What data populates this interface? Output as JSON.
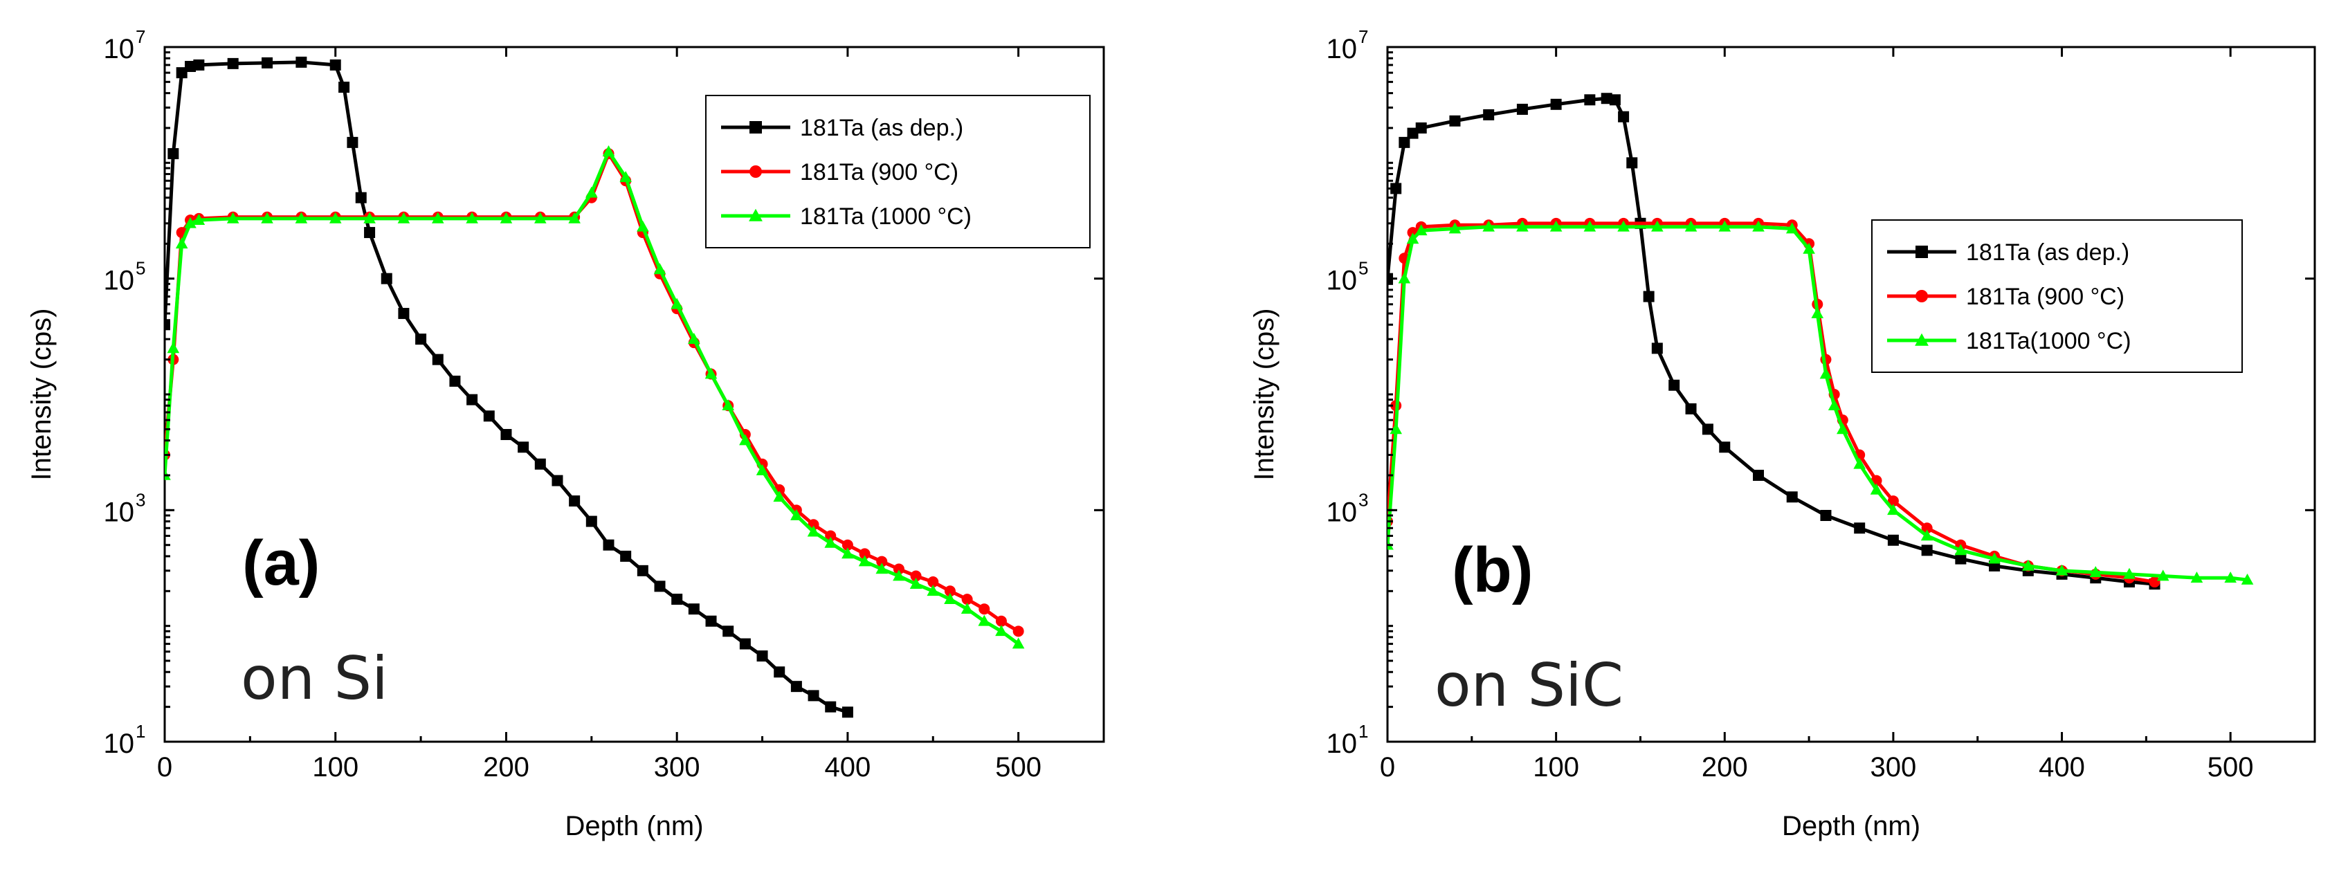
{
  "chart_data": [
    {
      "type": "scatter",
      "panel_label": "(a)",
      "substrate_label": "on Si",
      "xlabel": "Depth (nm)",
      "ylabel": "Intensity (cps)",
      "xlim": [
        0,
        550
      ],
      "ylim": [
        10,
        10000000
      ],
      "yscale": "log",
      "x_ticks": [
        "0",
        "100",
        "200",
        "300",
        "400",
        "500"
      ],
      "x_tick_values": [
        0,
        100,
        200,
        300,
        400,
        500
      ],
      "y_ticks": [
        {
          "base": "10",
          "exp": "1"
        },
        {
          "base": "10",
          "exp": "3"
        },
        {
          "base": "10",
          "exp": "5"
        },
        {
          "base": "10",
          "exp": "7"
        }
      ],
      "y_tick_values": [
        10,
        1000,
        100000,
        10000000
      ],
      "legend_position": "top-right",
      "series": [
        {
          "name": "181Ta (as dep.)",
          "color": "#000000",
          "marker": "square",
          "x": [
            0,
            5,
            10,
            15,
            20,
            40,
            60,
            80,
            100,
            105,
            110,
            115,
            120,
            130,
            140,
            150,
            160,
            170,
            180,
            190,
            200,
            210,
            220,
            230,
            240,
            250,
            260,
            270,
            280,
            290,
            300,
            310,
            320,
            330,
            340,
            350,
            360,
            370,
            380,
            390,
            400
          ],
          "y": [
            40000,
            1200000,
            6000000,
            6800000,
            7000000,
            7200000,
            7300000,
            7400000,
            7000000,
            4500000,
            1500000,
            500000,
            250000,
            100000,
            50000,
            30000,
            20000,
            13000,
            9000,
            6500,
            4500,
            3500,
            2500,
            1800,
            1200,
            800,
            500,
            400,
            300,
            220,
            170,
            140,
            110,
            90,
            70,
            55,
            40,
            30,
            25,
            20,
            18
          ]
        },
        {
          "name": "181Ta (900 °C)",
          "color": "#ff0000",
          "marker": "circle",
          "x": [
            0,
            5,
            10,
            15,
            20,
            40,
            60,
            80,
            100,
            120,
            140,
            160,
            180,
            200,
            220,
            240,
            250,
            260,
            270,
            280,
            290,
            300,
            310,
            320,
            330,
            340,
            350,
            360,
            370,
            380,
            390,
            400,
            410,
            420,
            430,
            440,
            450,
            460,
            470,
            480,
            490,
            500
          ],
          "y": [
            3000,
            20000,
            250000,
            320000,
            330000,
            340000,
            340000,
            340000,
            340000,
            340000,
            340000,
            340000,
            340000,
            340000,
            340000,
            340000,
            500000,
            1200000,
            700000,
            250000,
            110000,
            55000,
            28000,
            15000,
            8000,
            4500,
            2500,
            1500,
            1000,
            750,
            600,
            500,
            420,
            360,
            310,
            270,
            240,
            200,
            170,
            140,
            110,
            90
          ]
        },
        {
          "name": "181Ta (1000 °C)",
          "color": "#00ff00",
          "marker": "triangle",
          "x": [
            0,
            5,
            10,
            15,
            20,
            40,
            60,
            80,
            100,
            120,
            140,
            160,
            180,
            200,
            220,
            240,
            250,
            260,
            270,
            280,
            290,
            300,
            310,
            320,
            330,
            340,
            350,
            360,
            370,
            380,
            390,
            400,
            410,
            420,
            430,
            440,
            450,
            460,
            470,
            480,
            490,
            500
          ],
          "y": [
            2000,
            25000,
            200000,
            300000,
            320000,
            330000,
            330000,
            330000,
            330000,
            330000,
            330000,
            330000,
            330000,
            330000,
            330000,
            330000,
            550000,
            1250000,
            750000,
            280000,
            120000,
            60000,
            30000,
            15000,
            8000,
            4000,
            2200,
            1300,
            900,
            650,
            520,
            420,
            360,
            310,
            270,
            230,
            200,
            170,
            140,
            110,
            90,
            70
          ]
        }
      ]
    },
    {
      "type": "scatter",
      "panel_label": "(b)",
      "substrate_label": "on SiC",
      "xlabel": "Depth (nm)",
      "ylabel": "Intensity (cps)",
      "xlim": [
        0,
        550
      ],
      "ylim": [
        10,
        10000000
      ],
      "yscale": "log",
      "x_ticks": [
        "0",
        "100",
        "200",
        "300",
        "400",
        "500"
      ],
      "x_tick_values": [
        0,
        100,
        200,
        300,
        400,
        500
      ],
      "y_ticks": [
        {
          "base": "10",
          "exp": "1"
        },
        {
          "base": "10",
          "exp": "3"
        },
        {
          "base": "10",
          "exp": "5"
        },
        {
          "base": "10",
          "exp": "7"
        }
      ],
      "y_tick_values": [
        10,
        1000,
        100000,
        10000000
      ],
      "legend_position": "right",
      "series": [
        {
          "name": "181Ta  (as dep.)",
          "color": "#000000",
          "marker": "square",
          "x": [
            0,
            5,
            10,
            15,
            20,
            40,
            60,
            80,
            100,
            120,
            130,
            135,
            140,
            145,
            150,
            155,
            160,
            170,
            180,
            190,
            200,
            220,
            240,
            260,
            280,
            300,
            320,
            340,
            360,
            380,
            400,
            420,
            440,
            455
          ],
          "y": [
            100000,
            600000,
            1500000,
            1800000,
            2000000,
            2300000,
            2600000,
            2900000,
            3200000,
            3500000,
            3600000,
            3500000,
            2500000,
            1000000,
            300000,
            70000,
            25000,
            12000,
            7500,
            5000,
            3500,
            2000,
            1300,
            900,
            700,
            550,
            450,
            380,
            330,
            300,
            280,
            260,
            240,
            230
          ]
        },
        {
          "name": "181Ta (900 °C)",
          "color": "#ff0000",
          "marker": "circle",
          "x": [
            0,
            5,
            10,
            15,
            20,
            40,
            60,
            80,
            100,
            120,
            140,
            160,
            180,
            200,
            220,
            240,
            250,
            255,
            260,
            265,
            270,
            280,
            290,
            300,
            320,
            340,
            360,
            380,
            400,
            420,
            440,
            455
          ],
          "y": [
            800,
            8000,
            150000,
            250000,
            280000,
            290000,
            290000,
            300000,
            300000,
            300000,
            300000,
            300000,
            300000,
            300000,
            300000,
            290000,
            200000,
            60000,
            20000,
            10000,
            6000,
            3000,
            1800,
            1200,
            700,
            500,
            400,
            330,
            300,
            280,
            260,
            240
          ]
        },
        {
          "name": "181Ta(1000 °C)",
          "color": "#00ff00",
          "marker": "triangle",
          "x": [
            0,
            5,
            10,
            15,
            20,
            40,
            60,
            80,
            100,
            120,
            140,
            160,
            180,
            200,
            220,
            240,
            250,
            255,
            260,
            265,
            270,
            280,
            290,
            300,
            320,
            340,
            360,
            380,
            400,
            420,
            440,
            460,
            480,
            500,
            510
          ],
          "y": [
            500,
            5000,
            100000,
            220000,
            260000,
            270000,
            280000,
            280000,
            280000,
            280000,
            280000,
            280000,
            280000,
            280000,
            280000,
            270000,
            180000,
            50000,
            15000,
            8000,
            5000,
            2500,
            1500,
            1000,
            600,
            450,
            380,
            330,
            300,
            290,
            280,
            270,
            260,
            260,
            250
          ]
        }
      ]
    }
  ]
}
